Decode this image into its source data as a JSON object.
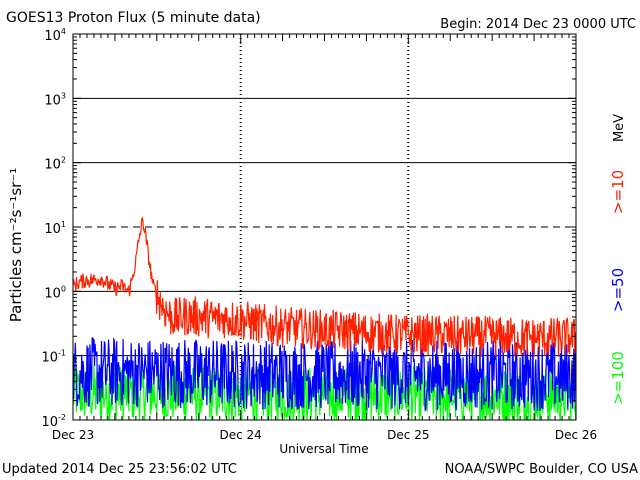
{
  "header": {
    "title": "GOES13 Proton Flux (5 minute data)",
    "begin": "Begin: 2014 Dec 23 0000 UTC"
  },
  "footer": {
    "updated": "Updated 2014 Dec 25 23:56:02 UTC",
    "credit": "NOAA/SWPC Boulder, CO USA"
  },
  "colors": {
    "ge10": "#ff2000",
    "ge50": "#0000ff",
    "ge100": "#00ff00",
    "axis": "#000000"
  },
  "chart_data": {
    "type": "line",
    "title": "GOES13 Proton Flux (5 minute data)",
    "xlabel": "Universal Time",
    "ylabel": "Particles cm⁻²s⁻¹sr⁻¹",
    "yscale": "log",
    "xlim": [
      0,
      72
    ],
    "ylim": [
      0.01,
      10000
    ],
    "x_ticks": [
      {
        "hour": 0,
        "label": "Dec 23"
      },
      {
        "hour": 24,
        "label": "Dec 24"
      },
      {
        "hour": 48,
        "label": "Dec 25"
      },
      {
        "hour": 72,
        "label": "Dec 26"
      }
    ],
    "y_ticks": [
      {
        "value": 0.01,
        "base": "10",
        "exp": "-2"
      },
      {
        "value": 0.1,
        "base": "10",
        "exp": "-1"
      },
      {
        "value": 1,
        "base": "10",
        "exp": "0"
      },
      {
        "value": 10,
        "base": "10",
        "exp": "1"
      },
      {
        "value": 100,
        "base": "10",
        "exp": "2"
      },
      {
        "value": 1000,
        "base": "10",
        "exp": "3"
      },
      {
        "value": 10000,
        "base": "10",
        "exp": "4"
      }
    ],
    "threshold_levels": [
      10,
      0.1
    ],
    "energy_unit": "MeV",
    "series": [
      {
        "name": ">=10",
        "color": "#ff2000",
        "hours": [
          0,
          1,
          2,
          3,
          4,
          5,
          6,
          7,
          8,
          8.5,
          9,
          9.5,
          10,
          10.5,
          11,
          11.5,
          12,
          13,
          14,
          15,
          16,
          18,
          20,
          22,
          24,
          26,
          28,
          30,
          32,
          34,
          36,
          40,
          44,
          48,
          52,
          56,
          60,
          64,
          68,
          72
        ],
        "values": [
          1.2,
          1.4,
          1.5,
          1.5,
          1.6,
          1.3,
          1.1,
          1.2,
          1.0,
          1.6,
          3.0,
          7.0,
          13.0,
          6.0,
          2.5,
          1.2,
          0.9,
          0.55,
          0.4,
          0.38,
          0.42,
          0.4,
          0.38,
          0.38,
          0.36,
          0.32,
          0.3,
          0.28,
          0.27,
          0.26,
          0.25,
          0.24,
          0.22,
          0.21,
          0.21,
          0.2,
          0.2,
          0.19,
          0.19,
          0.19
        ]
      },
      {
        "name": ">=50",
        "color": "#0000ff",
        "hours": [
          0,
          12,
          24,
          36,
          48,
          60,
          72
        ],
        "values": [
          0.055,
          0.055,
          0.052,
          0.05,
          0.05,
          0.05,
          0.048
        ]
      },
      {
        "name": ">=100",
        "color": "#00ff00",
        "hours": [
          0,
          12,
          24,
          36,
          48,
          60,
          72
        ],
        "values": [
          0.026,
          0.026,
          0.025,
          0.025,
          0.025,
          0.024,
          0.024
        ]
      }
    ]
  }
}
